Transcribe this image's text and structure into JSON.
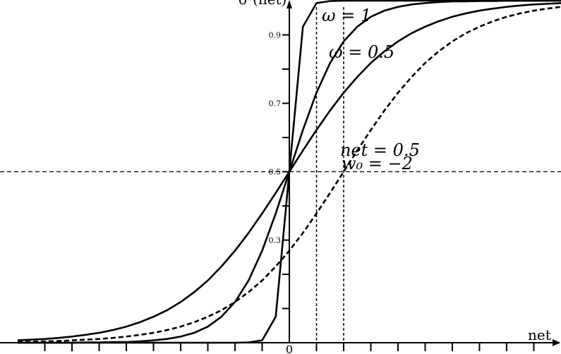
{
  "chart_data": {
    "type": "line",
    "y_label": "σ (net)",
    "x_label": "net",
    "annotations": [
      "ω = 1",
      "ω = 0.5",
      "net = 0.5",
      "w₀ = −2"
    ],
    "x": [
      -10,
      -9.5,
      -9,
      -8.5,
      -8,
      -7.5,
      -7,
      -6.5,
      -6,
      -5.5,
      -5,
      -4.5,
      -4,
      -3.5,
      -3,
      -2.5,
      -2,
      -1.5,
      -1,
      -0.5,
      0,
      0.5,
      1,
      1.5,
      2,
      2.5,
      3,
      3.5,
      4,
      4.5,
      5,
      5.5,
      6,
      6.5,
      7,
      7.5,
      8,
      8.5,
      9,
      9.5,
      10
    ],
    "series": [
      {
        "color": "#000000",
        "dashed": false,
        "values": [
          0,
          0,
          0,
          0,
          0,
          0,
          0,
          0,
          0,
          0,
          0,
          0,
          0,
          0,
          0,
          0,
          0,
          0.001,
          0.007,
          0.076,
          0.5,
          0.924,
          0.993,
          0.999,
          1,
          1,
          1,
          1,
          1,
          1,
          1,
          1,
          1,
          1,
          1,
          1,
          1,
          1,
          1,
          1,
          1
        ]
      },
      {
        "color": "#000000",
        "dashed": false,
        "values": [
          0,
          0,
          0,
          0,
          0,
          0.001,
          0.001,
          0.002,
          0.002,
          0.004,
          0.007,
          0.011,
          0.018,
          0.029,
          0.047,
          0.076,
          0.119,
          0.182,
          0.269,
          0.378,
          0.5,
          0.622,
          0.731,
          0.818,
          0.881,
          0.924,
          0.953,
          0.971,
          0.982,
          0.989,
          0.993,
          0.996,
          0.998,
          0.998,
          0.999,
          0.999,
          1,
          1,
          1,
          1,
          1
        ]
      },
      {
        "color": "#000000",
        "dashed": false,
        "values": [
          0.007,
          0.009,
          0.011,
          0.014,
          0.018,
          0.023,
          0.029,
          0.037,
          0.047,
          0.06,
          0.076,
          0.095,
          0.119,
          0.148,
          0.182,
          0.223,
          0.269,
          0.321,
          0.378,
          0.438,
          0.5,
          0.562,
          0.622,
          0.679,
          0.731,
          0.777,
          0.818,
          0.852,
          0.881,
          0.905,
          0.924,
          0.94,
          0.953,
          0.963,
          0.971,
          0.977,
          0.982,
          0.986,
          0.989,
          0.991,
          0.993
        ]
      },
      {
        "color": "#000000",
        "dashed": true,
        "values": [
          0.002,
          0.003,
          0.004,
          0.005,
          0.007,
          0.009,
          0.011,
          0.014,
          0.018,
          0.023,
          0.029,
          0.037,
          0.047,
          0.06,
          0.076,
          0.095,
          0.119,
          0.148,
          0.182,
          0.223,
          0.269,
          0.321,
          0.378,
          0.438,
          0.5,
          0.562,
          0.622,
          0.679,
          0.731,
          0.777,
          0.818,
          0.852,
          0.881,
          0.905,
          0.924,
          0.94,
          0.953,
          0.963,
          0.971,
          0.977,
          0.982
        ]
      }
    ],
    "xlim": [
      -10.65,
      10
    ],
    "ylim": [
      0,
      1
    ],
    "xticks": [
      0
    ],
    "xminor_ticks": [
      -9,
      -8,
      -7,
      -6,
      -5,
      -4,
      -3,
      -2,
      -1,
      1,
      2,
      3,
      4,
      5,
      6,
      7,
      8,
      9
    ],
    "yticks": [
      0.3,
      0.5,
      0.7,
      0.9
    ],
    "yminor_ticks": [
      0.1,
      0.2,
      0.4,
      0.6,
      0.8
    ],
    "ref_x": [
      1,
      2
    ],
    "ref_y": [
      0.5
    ]
  }
}
